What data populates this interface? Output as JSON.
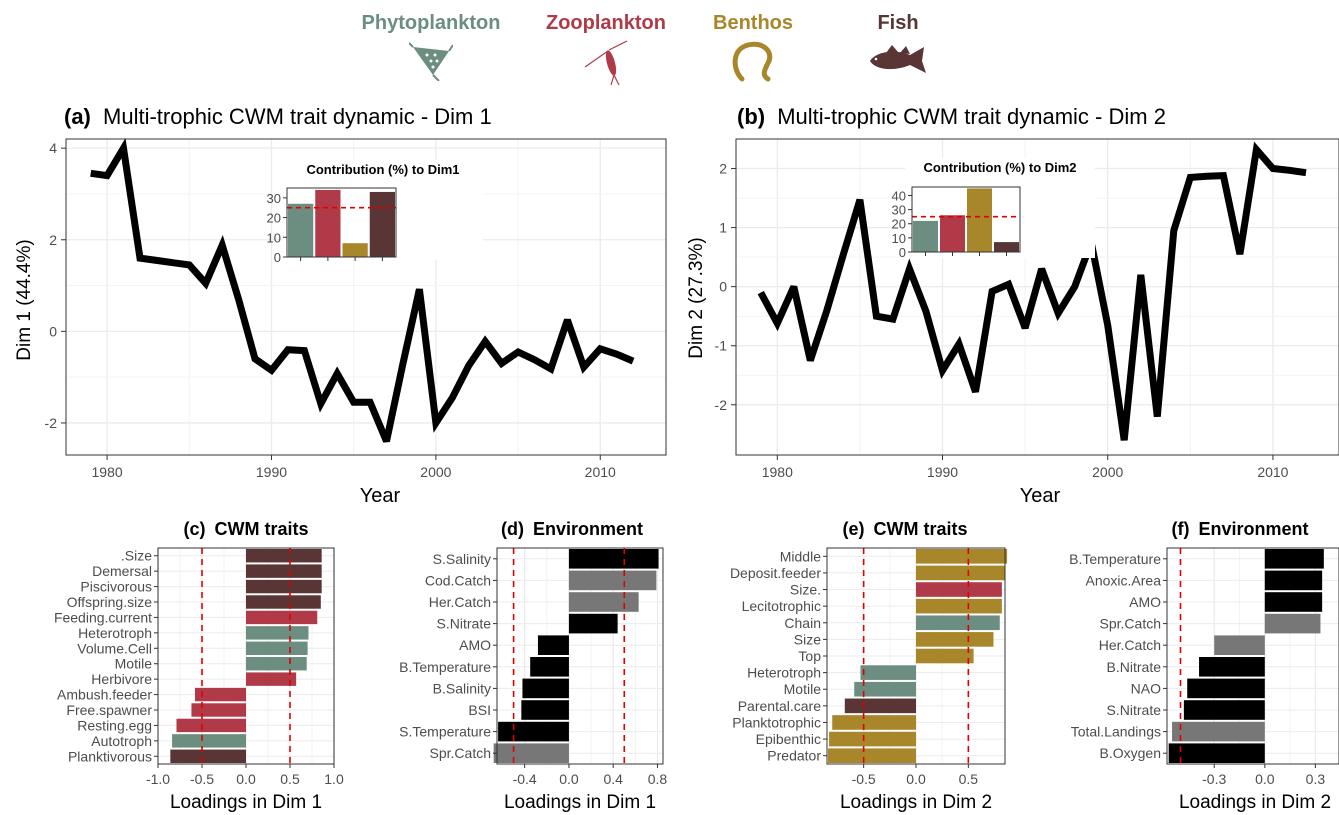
{
  "legend": [
    {
      "label": "Phytoplankton",
      "color": "#6b8e80",
      "icon": "phytoplankton-icon"
    },
    {
      "label": "Zooplankton",
      "color": "#b03a48",
      "icon": "zooplankton-icon"
    },
    {
      "label": "Benthos",
      "color": "#a8862a",
      "icon": "benthos-worm-icon"
    },
    {
      "label": "Fish",
      "color": "#5a3536",
      "icon": "fish-icon"
    }
  ],
  "colors": {
    "phyto": "#6b8e80",
    "zoo": "#b03a48",
    "benthos": "#a8862a",
    "fish": "#5a3536",
    "env_black": "#000000",
    "env_grey": "#777777",
    "threshold": "#e00000",
    "panel_border": "#333333",
    "grid": "#ebebeb"
  },
  "chart_data": [
    {
      "id": "a",
      "type": "line",
      "tag": "(a)",
      "title": "Multi-trophic CWM trait dynamic - Dim 1",
      "xlabel": "Year",
      "ylabel": "Dim 1 (44.4%)",
      "xlim": [
        1977.5,
        2014
      ],
      "ylim": [
        -2.7,
        4.2
      ],
      "xticks": [
        1980,
        1990,
        2000,
        2010
      ],
      "yticks": [
        -2,
        0,
        2,
        4
      ],
      "grid": true,
      "x": [
        1979,
        1980,
        1981,
        1982,
        1983,
        1984,
        1985,
        1986,
        1987,
        1988,
        1989,
        1990,
        1991,
        1992,
        1993,
        1994,
        1995,
        1996,
        1997,
        1998,
        1999,
        2000,
        2001,
        2002,
        2003,
        2004,
        2005,
        2006,
        2007,
        2008,
        2009,
        2010,
        2011,
        2012
      ],
      "y": [
        3.45,
        3.4,
        4.0,
        1.6,
        1.55,
        1.5,
        1.45,
        1.05,
        1.88,
        0.7,
        -0.6,
        -0.85,
        -0.4,
        -0.42,
        -1.58,
        -0.92,
        -1.55,
        -1.55,
        -2.4,
        -0.7,
        0.92,
        -2.0,
        -1.45,
        -0.75,
        -0.22,
        -0.7,
        -0.45,
        -0.62,
        -0.82,
        0.25,
        -0.78,
        -0.38,
        -0.5,
        -0.65
      ],
      "inset": {
        "title": "Contribution (%) to Dim1",
        "type": "bar",
        "categories": [
          "Phytoplankton",
          "Zooplankton",
          "Benthos",
          "Fish"
        ],
        "values": [
          27,
          34,
          7,
          33
        ],
        "ylim": [
          0,
          35
        ],
        "yticks": [
          0,
          10,
          20,
          30
        ],
        "threshold": 25
      }
    },
    {
      "id": "b",
      "type": "line",
      "tag": "(b)",
      "title": "Multi-trophic CWM trait dynamic - Dim 2",
      "xlabel": "Year",
      "ylabel": "Dim 2 (27.3%)",
      "xlim": [
        1977.5,
        2014
      ],
      "ylim": [
        -2.85,
        2.5
      ],
      "xticks": [
        1980,
        1990,
        2000,
        2010
      ],
      "yticks": [
        -2,
        -1,
        0,
        1,
        2
      ],
      "grid": true,
      "x": [
        1979,
        1980,
        1981,
        1982,
        1983,
        1984,
        1985,
        1986,
        1987,
        1988,
        1989,
        1990,
        1991,
        1992,
        1993,
        1994,
        1995,
        1996,
        1997,
        1998,
        1999,
        2000,
        2001,
        2002,
        2003,
        2004,
        2005,
        2006,
        2007,
        2008,
        2009,
        2010,
        2011,
        2012
      ],
      "y": [
        -0.1,
        -0.62,
        0.0,
        -1.25,
        -0.4,
        0.55,
        1.47,
        -0.5,
        -0.55,
        0.3,
        -0.42,
        -1.42,
        -0.97,
        -1.78,
        -0.08,
        0.04,
        -0.7,
        0.3,
        -0.45,
        0.0,
        0.75,
        -0.65,
        -2.6,
        0.2,
        -2.2,
        0.95,
        1.85,
        1.87,
        1.88,
        0.55,
        2.32,
        2.0,
        1.97,
        1.93
      ],
      "inset": {
        "title": "Contribution (%) to Dim2",
        "type": "bar",
        "categories": [
          "Phytoplankton",
          "Zooplankton",
          "Benthos",
          "Fish"
        ],
        "values": [
          22,
          26,
          45,
          7
        ],
        "ylim": [
          0,
          46
        ],
        "yticks": [
          0,
          10,
          20,
          30,
          40
        ],
        "threshold": 25
      }
    },
    {
      "id": "c",
      "type": "bar",
      "orientation": "horizontal",
      "tag": "(c)",
      "title": "CWM traits",
      "xlabel": "Loadings in Dim 1",
      "xlim": [
        -1.0,
        1.0
      ],
      "xticks": [
        -1.0,
        -0.5,
        0.0,
        0.5,
        1.0
      ],
      "xtick_labels": [
        "-1.0",
        "-0.5",
        "0.0",
        "0.5",
        "1.0"
      ],
      "thresholds": [
        -0.5,
        0.5
      ],
      "categories": [
        ".Size",
        "Demersal",
        "Piscivorous",
        "Offspring.size",
        "Feeding.current",
        "Heterotroph",
        "Volume.Cell",
        "Motile",
        "Herbivore",
        "Ambush.feeder",
        "Free.spawner",
        "Resting.egg",
        "Autotroph",
        "Planktivorous"
      ],
      "values": [
        0.86,
        0.86,
        0.86,
        0.85,
        0.81,
        0.71,
        0.7,
        0.69,
        0.57,
        -0.58,
        -0.62,
        -0.79,
        -0.84,
        -0.86
      ],
      "groups": [
        "fish",
        "fish",
        "fish",
        "fish",
        "zoo",
        "phyto",
        "phyto",
        "phyto",
        "zoo",
        "zoo",
        "zoo",
        "zoo",
        "phyto",
        "fish"
      ]
    },
    {
      "id": "d",
      "type": "bar",
      "orientation": "horizontal",
      "tag": "(d)",
      "title": "Environment",
      "xlabel": "Loadings in Dim 1",
      "xlim": [
        -0.65,
        0.85
      ],
      "xticks": [
        -0.4,
        0.0,
        0.4,
        0.8
      ],
      "xtick_labels": [
        "-0.4",
        "0.0",
        "0.4",
        "0.8"
      ],
      "thresholds": [
        -0.5,
        0.5
      ],
      "categories": [
        "S.Salinity",
        "Cod.Catch",
        "Her.Catch",
        "S.Nitrate",
        "AMO",
        "B.Temperature",
        "B.Salinity",
        "BSI",
        "S.Temperature",
        "Spr.Catch"
      ],
      "values": [
        0.81,
        0.79,
        0.63,
        0.44,
        -0.28,
        -0.35,
        -0.42,
        -0.43,
        -0.64,
        -0.68
      ],
      "groups": [
        "black",
        "grey",
        "grey",
        "black",
        "black",
        "black",
        "black",
        "black",
        "black",
        "grey"
      ]
    },
    {
      "id": "e",
      "type": "bar",
      "orientation": "horizontal",
      "tag": "(e)",
      "title": "CWM traits",
      "xlabel": "Loadings in Dim 2",
      "xlim": [
        -0.85,
        0.85
      ],
      "xticks": [
        -0.5,
        0.0,
        0.5
      ],
      "xtick_labels": [
        "-0.5",
        "0.0",
        "0.5"
      ],
      "thresholds": [
        -0.5,
        0.5
      ],
      "categories": [
        "Middle",
        "Deposit.feeder",
        "Size.",
        "Lecitotrophic",
        "Chain",
        "Size",
        "Top",
        "Heterotroph",
        "Motile",
        "Parental.care",
        "Planktotrophic",
        "Epibenthic",
        "Predator"
      ],
      "values": [
        0.87,
        0.85,
        0.82,
        0.82,
        0.8,
        0.74,
        0.55,
        -0.53,
        -0.59,
        -0.68,
        -0.8,
        -0.83,
        -0.84
      ],
      "groups": [
        "benthos",
        "benthos",
        "zoo",
        "benthos",
        "phyto",
        "benthos",
        "benthos",
        "phyto",
        "phyto",
        "fish",
        "benthos",
        "benthos",
        "benthos"
      ]
    },
    {
      "id": "f",
      "type": "bar",
      "orientation": "horizontal",
      "tag": "(f)",
      "title": "Environment",
      "xlabel": "Loadings in Dim 2",
      "xlim": [
        -0.58,
        0.44
      ],
      "xticks": [
        -0.3,
        0.0,
        0.3
      ],
      "xtick_labels": [
        "-0.3",
        "0.0",
        "0.3"
      ],
      "thresholds": [
        -0.5,
        0.5
      ],
      "categories": [
        "B.Temperature",
        "Anoxic.Area",
        "AMO",
        "Spr.Catch",
        "Her.Catch",
        "B.Nitrate",
        "NAO",
        "S.Nitrate",
        "Total.Landings",
        "B.Oxygen"
      ],
      "values": [
        0.35,
        0.34,
        0.34,
        0.33,
        -0.3,
        -0.39,
        -0.46,
        -0.48,
        -0.55,
        -0.57
      ],
      "groups": [
        "black",
        "black",
        "black",
        "grey",
        "grey",
        "black",
        "black",
        "black",
        "grey",
        "black"
      ]
    }
  ]
}
